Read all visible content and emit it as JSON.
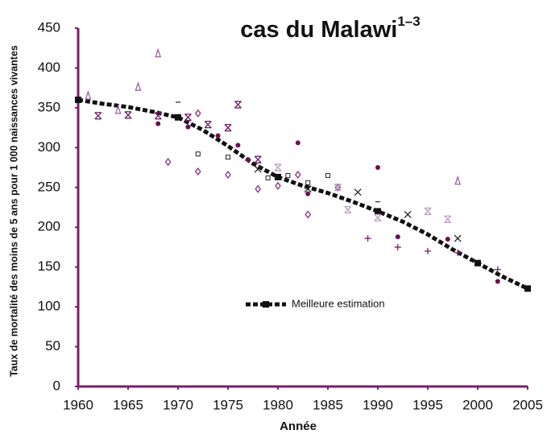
{
  "chart_data": {
    "type": "scatter",
    "title": "cas du Malawi",
    "title_sup": "1–3",
    "xlabel": "Année",
    "ylabel": "Taux de mortalité des moins de 5 ans pour 1 000 naissances vivantes",
    "xlim": [
      1960,
      2005
    ],
    "xticks": [
      1960,
      1965,
      1970,
      1975,
      1980,
      1985,
      1990,
      1995,
      2000,
      2005
    ],
    "ylim": [
      0,
      450
    ],
    "yticks": [
      0,
      50,
      100,
      150,
      200,
      250,
      300,
      350,
      400,
      450
    ],
    "axis_color": "#7a1f6b",
    "series": [
      {
        "name": "Meilleure estimation",
        "kind": "line",
        "marker": "square",
        "color": "#111111",
        "x": [
          1960,
          1962.5,
          1965,
          1967.5,
          1970,
          1972.5,
          1975,
          1977.5,
          1980,
          1982.5,
          1985,
          1987.5,
          1990,
          1992.5,
          1995,
          1997.5,
          2000,
          2002.5,
          2005
        ],
        "y": [
          360,
          355,
          351,
          345,
          338,
          322,
          302,
          280,
          263,
          252,
          243,
          232,
          220,
          207,
          191,
          172,
          155,
          138,
          123
        ]
      },
      {
        "marker": "triangle",
        "color": "#9b5fa0",
        "x": [
          1961,
          1964,
          1966,
          1968,
          1998
        ],
        "y": [
          365,
          347,
          376,
          418,
          258
        ]
      },
      {
        "marker": "star",
        "color": "#6b1f5f",
        "x": [
          1962,
          1965,
          1968,
          1971,
          1973,
          1975,
          1976,
          1978
        ],
        "y": [
          340,
          341,
          340,
          338,
          329,
          325,
          354,
          285
        ]
      },
      {
        "marker": "diamond",
        "color": "#8b2f7f",
        "x": [
          1969,
          1972,
          1972,
          1975,
          1978,
          1980,
          1982,
          1983,
          1986
        ],
        "y": [
          282,
          270,
          343,
          266,
          248,
          252,
          266,
          216,
          250
        ]
      },
      {
        "marker": "circle",
        "color": "#6b1050",
        "x": [
          1968,
          1971,
          1974,
          1976,
          1977,
          1982,
          1983,
          1990,
          1992,
          1997,
          2002
        ],
        "y": [
          330,
          326,
          315,
          303,
          285,
          306,
          242,
          275,
          188,
          185,
          132
        ]
      },
      {
        "marker": "opensquare",
        "color": "#222222",
        "x": [
          1972,
          1975,
          1979,
          1981,
          1983,
          1985
        ],
        "y": [
          292,
          288,
          262,
          265,
          256,
          265
        ]
      },
      {
        "marker": "x",
        "color": "#222222",
        "x": [
          1978,
          1983,
          1988,
          1993,
          1998
        ],
        "y": [
          273,
          248,
          244,
          216,
          186
        ]
      },
      {
        "marker": "plus",
        "color": "#7a1f6b",
        "x": [
          1989,
          1992,
          1995,
          1998,
          2002
        ],
        "y": [
          186,
          175,
          170,
          168,
          147
        ]
      },
      {
        "marker": "star",
        "color": "#b8a0bc",
        "x": [
          1980,
          1986,
          1987,
          1990,
          1995,
          1997
        ],
        "y": [
          275,
          250,
          222,
          212,
          220,
          210
        ]
      },
      {
        "marker": "dash",
        "color": "#333333",
        "x": [
          1970,
          1990
        ],
        "y": [
          357,
          232
        ]
      }
    ]
  }
}
